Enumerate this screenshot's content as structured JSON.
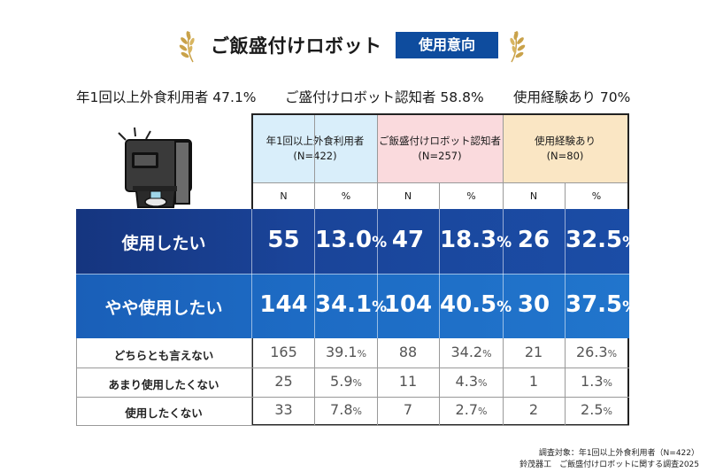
{
  "header": {
    "title": "ご飯盛付けロボット",
    "badge": "使用意向"
  },
  "stats": [
    {
      "label": "年1回以上外食利用者 47.1%"
    },
    {
      "label": "ご盛付けロボット認知者 58.8%"
    },
    {
      "label": "使用経験あり 70%"
    }
  ],
  "colors": {
    "accent": "#0e4c9e",
    "col1": "#d9eefa",
    "col2": "#fadadd",
    "col3": "#fae6c4",
    "strong_row": "#1a4499",
    "mild_row": "#1d6bc4"
  },
  "chart_data": {
    "type": "table",
    "groups": [
      {
        "name": "年1回以上外食利用者",
        "n_label": "(N=422)"
      },
      {
        "name": "ご飯盛付けロボット認知者",
        "n_label": "(N=257)"
      },
      {
        "name": "使用経験あり",
        "n_label": "(N=80)"
      }
    ],
    "subheaders": [
      "N",
      "%",
      "N",
      "%",
      "N",
      "%"
    ],
    "rows": [
      {
        "label": "使用したい",
        "cells": [
          {
            "n": "55",
            "pct": "13.0",
            "pct_suffix": "%"
          },
          {
            "n": "47",
            "pct": "18.3",
            "pct_suffix": "%"
          },
          {
            "n": "26",
            "pct": "32.5",
            "pct_suffix": "%"
          }
        ]
      },
      {
        "label": "やや使用したい",
        "cells": [
          {
            "n": "144",
            "pct": "34.1",
            "pct_suffix": "%"
          },
          {
            "n": "104",
            "pct": "40.5",
            "pct_suffix": "%"
          },
          {
            "n": "30",
            "pct": "37.5",
            "pct_suffix": "%"
          }
        ]
      },
      {
        "label": "どちらとも言えない",
        "cells": [
          {
            "n": "165",
            "pct": "39.1",
            "pct_suffix": "%"
          },
          {
            "n": "88",
            "pct": "34.2",
            "pct_suffix": "%"
          },
          {
            "n": "21",
            "pct": "26.3",
            "pct_suffix": "%"
          }
        ]
      },
      {
        "label": "あまり使用したくない",
        "cells": [
          {
            "n": "25",
            "pct": "5.9",
            "pct_suffix": "%"
          },
          {
            "n": "11",
            "pct": "4.3",
            "pct_suffix": "%"
          },
          {
            "n": "1",
            "pct": "1.3",
            "pct_suffix": "%"
          }
        ]
      },
      {
        "label": "使用したくない",
        "cells": [
          {
            "n": "33",
            "pct": "7.8",
            "pct_suffix": "%"
          },
          {
            "n": "7",
            "pct": "2.7",
            "pct_suffix": "%"
          },
          {
            "n": "2",
            "pct": "2.5",
            "pct_suffix": "%"
          }
        ]
      }
    ]
  },
  "footnote": {
    "line1": "調査対象：年1回以上外食利用者（N=422）",
    "line2": "鈴茂器工　ご飯盛付けロボットに関する調査2025"
  }
}
